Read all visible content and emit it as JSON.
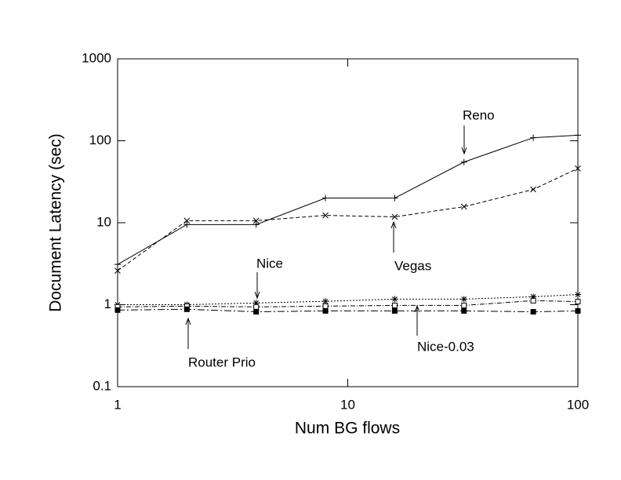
{
  "chart_data": {
    "type": "line",
    "x_label": "Num BG flows",
    "y_label": "Document Latency (sec)",
    "x": [
      1,
      2,
      4,
      8,
      16,
      32,
      64,
      100
    ],
    "xlog": true,
    "ylog": true,
    "xlim": [
      1,
      100
    ],
    "ylim": [
      0.1,
      1000
    ],
    "xticks": [
      1,
      10,
      100
    ],
    "yticks": [
      0.1,
      1,
      10,
      100,
      1000
    ],
    "grid": false,
    "series": [
      {
        "name": "Reno",
        "color": "#000000",
        "dash": "solid",
        "marker": "plus",
        "values": [
          3.1,
          9.5,
          9.5,
          20,
          20,
          55,
          109,
          117
        ]
      },
      {
        "name": "Vegas",
        "color": "#000000",
        "dash": "dashed",
        "marker": "cross",
        "values": [
          2.6,
          10.6,
          10.6,
          12.3,
          11.8,
          15.7,
          25.5,
          46
        ]
      },
      {
        "name": "Nice",
        "color": "#000000",
        "dash": "dotted",
        "marker": "star",
        "values": [
          1.0,
          1.0,
          1.05,
          1.1,
          1.17,
          1.17,
          1.25,
          1.33
        ]
      },
      {
        "name": "Nice-0.03",
        "color": "#000000",
        "dash": "dashdot",
        "marker": "square",
        "values": [
          0.94,
          0.96,
          0.94,
          0.96,
          0.98,
          0.98,
          1.12,
          1.09
        ]
      },
      {
        "name": "Router Prio",
        "color": "#000000",
        "dash": "longdashdot",
        "marker": "filled-square",
        "values": [
          0.86,
          0.88,
          0.82,
          0.84,
          0.84,
          0.84,
          0.82,
          0.84
        ]
      }
    ]
  }
}
